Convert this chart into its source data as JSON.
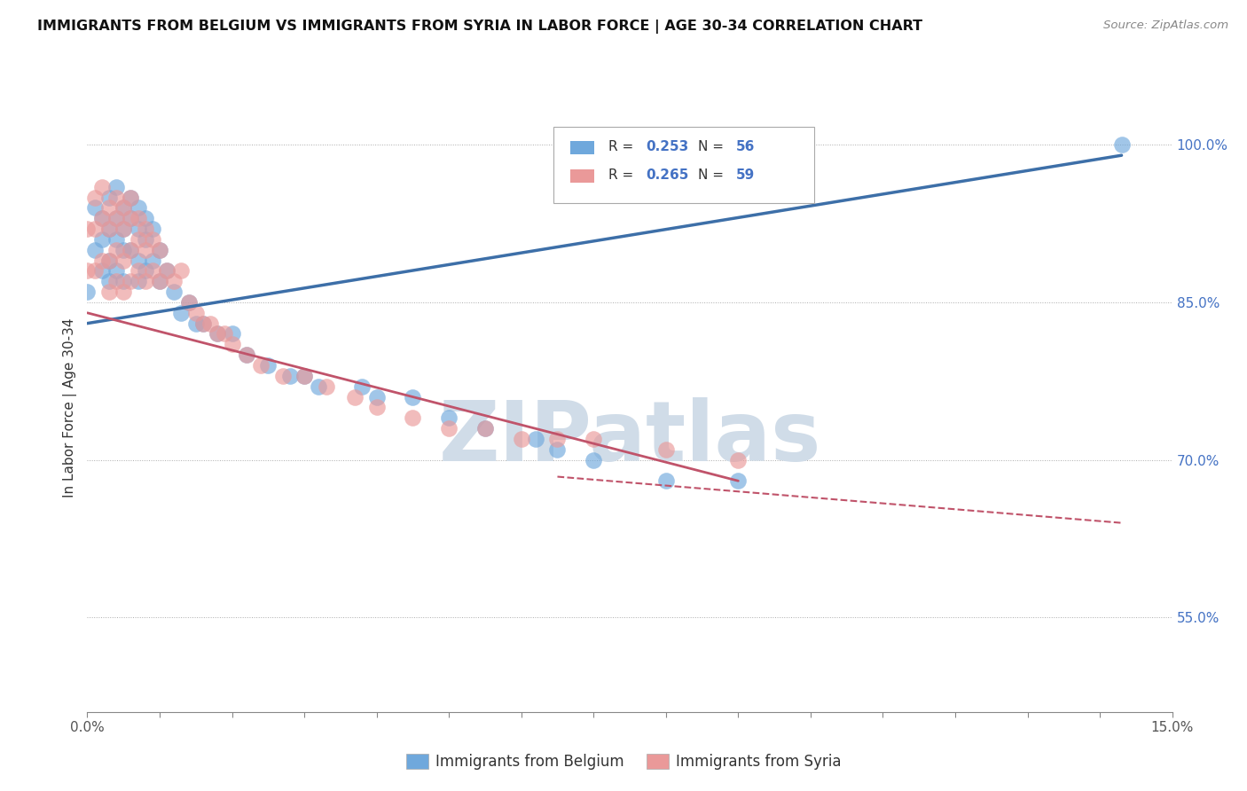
{
  "title": "IMMIGRANTS FROM BELGIUM VS IMMIGRANTS FROM SYRIA IN LABOR FORCE | AGE 30-34 CORRELATION CHART",
  "source_text": "Source: ZipAtlas.com",
  "ylabel": "In Labor Force | Age 30-34",
  "xlim": [
    0.0,
    0.15
  ],
  "ylim": [
    0.46,
    1.04
  ],
  "yticklabels_right": [
    "55.0%",
    "70.0%",
    "85.0%",
    "100.0%"
  ],
  "yticklabels_right_vals": [
    0.55,
    0.7,
    0.85,
    1.0
  ],
  "belgium_R": 0.253,
  "belgium_N": 56,
  "syria_R": 0.265,
  "syria_N": 59,
  "belgium_color": "#6fa8dc",
  "syria_color": "#ea9999",
  "belgium_line_color": "#3d6fa8",
  "syria_line_color": "#c0536a",
  "watermark": "ZIPatlas",
  "watermark_color": "#d0dce8",
  "background_color": "#ffffff",
  "grid_color": "#aaaaaa",
  "belgium_regline": [
    [
      0.0,
      0.83
    ],
    [
      0.143,
      0.99
    ]
  ],
  "syria_regline": [
    [
      0.0,
      0.84
    ],
    [
      0.09,
      0.68
    ]
  ],
  "belgium_x": [
    0.0,
    0.001,
    0.001,
    0.002,
    0.002,
    0.002,
    0.003,
    0.003,
    0.003,
    0.003,
    0.004,
    0.004,
    0.004,
    0.004,
    0.005,
    0.005,
    0.005,
    0.005,
    0.006,
    0.006,
    0.006,
    0.007,
    0.007,
    0.007,
    0.007,
    0.008,
    0.008,
    0.008,
    0.009,
    0.009,
    0.01,
    0.01,
    0.011,
    0.012,
    0.013,
    0.014,
    0.015,
    0.016,
    0.018,
    0.02,
    0.022,
    0.025,
    0.028,
    0.03,
    0.032,
    0.038,
    0.04,
    0.045,
    0.05,
    0.055,
    0.062,
    0.065,
    0.07,
    0.08,
    0.09,
    0.143
  ],
  "belgium_y": [
    0.86,
    0.94,
    0.9,
    0.93,
    0.91,
    0.88,
    0.95,
    0.92,
    0.89,
    0.87,
    0.96,
    0.93,
    0.91,
    0.88,
    0.94,
    0.92,
    0.9,
    0.87,
    0.95,
    0.93,
    0.9,
    0.94,
    0.92,
    0.89,
    0.87,
    0.93,
    0.91,
    0.88,
    0.92,
    0.89,
    0.9,
    0.87,
    0.88,
    0.86,
    0.84,
    0.85,
    0.83,
    0.83,
    0.82,
    0.82,
    0.8,
    0.79,
    0.78,
    0.78,
    0.77,
    0.77,
    0.76,
    0.76,
    0.74,
    0.73,
    0.72,
    0.71,
    0.7,
    0.68,
    0.68,
    1.0
  ],
  "syria_x": [
    0.0,
    0.0,
    0.001,
    0.001,
    0.001,
    0.002,
    0.002,
    0.002,
    0.003,
    0.003,
    0.003,
    0.003,
    0.004,
    0.004,
    0.004,
    0.004,
    0.005,
    0.005,
    0.005,
    0.005,
    0.006,
    0.006,
    0.006,
    0.006,
    0.007,
    0.007,
    0.007,
    0.008,
    0.008,
    0.008,
    0.009,
    0.009,
    0.01,
    0.01,
    0.011,
    0.012,
    0.013,
    0.014,
    0.015,
    0.016,
    0.017,
    0.018,
    0.019,
    0.02,
    0.022,
    0.024,
    0.027,
    0.03,
    0.033,
    0.037,
    0.04,
    0.045,
    0.05,
    0.055,
    0.06,
    0.065,
    0.07,
    0.08,
    0.09
  ],
  "syria_y": [
    0.92,
    0.88,
    0.95,
    0.92,
    0.88,
    0.96,
    0.93,
    0.89,
    0.94,
    0.92,
    0.89,
    0.86,
    0.95,
    0.93,
    0.9,
    0.87,
    0.94,
    0.92,
    0.89,
    0.86,
    0.95,
    0.93,
    0.9,
    0.87,
    0.93,
    0.91,
    0.88,
    0.92,
    0.9,
    0.87,
    0.91,
    0.88,
    0.9,
    0.87,
    0.88,
    0.87,
    0.88,
    0.85,
    0.84,
    0.83,
    0.83,
    0.82,
    0.82,
    0.81,
    0.8,
    0.79,
    0.78,
    0.78,
    0.77,
    0.76,
    0.75,
    0.74,
    0.73,
    0.73,
    0.72,
    0.72,
    0.72,
    0.71,
    0.7
  ]
}
